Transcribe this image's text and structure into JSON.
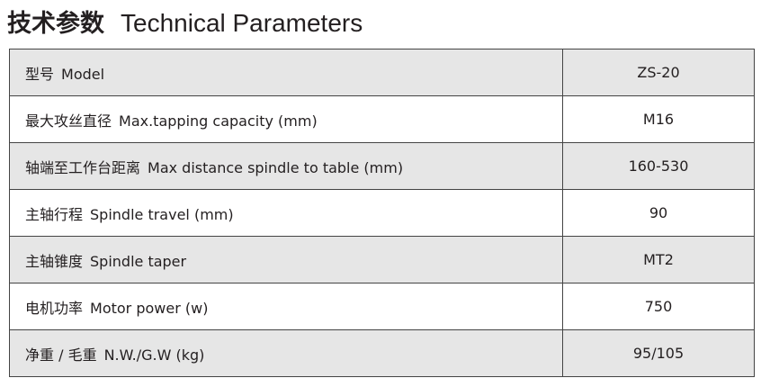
{
  "heading": {
    "cn": "技术参数",
    "en": "Technical Parameters"
  },
  "rows": [
    {
      "cn": "型号",
      "en": "Model",
      "value": "ZS-20"
    },
    {
      "cn": "最大攻丝直径",
      "en": "Max.tapping capacity (mm)",
      "value": "M16"
    },
    {
      "cn": "轴端至工作台距离",
      "en": "Max distance spindle to table (mm)",
      "value": "160-530"
    },
    {
      "cn": "主轴行程",
      "en": "Spindle travel (mm)",
      "value": "90"
    },
    {
      "cn": "主轴锥度",
      "en": "Spindle taper",
      "value": "MT2"
    },
    {
      "cn": "电机功率",
      "en": "Motor power (w)",
      "value": "750"
    },
    {
      "cn": "净重 / 毛重",
      "en": "N.W./G.W (kg)",
      "value": "95/105"
    }
  ],
  "colors": {
    "shaded_row": "#e6e6e6",
    "border": "#444444"
  }
}
